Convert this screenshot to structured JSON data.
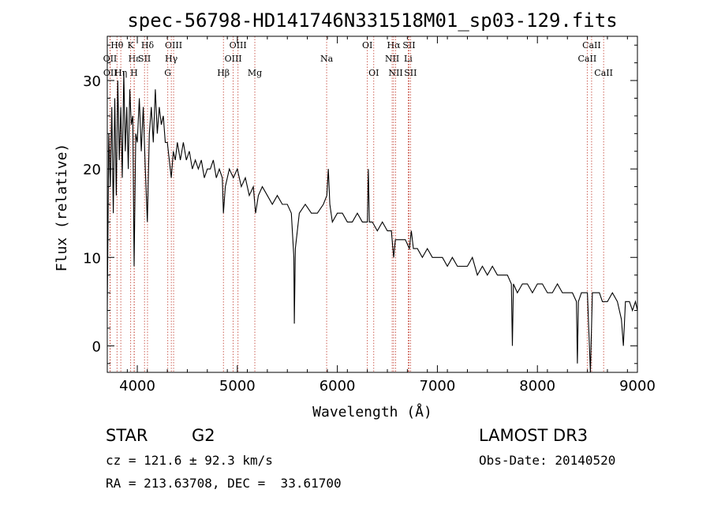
{
  "chart_data": {
    "type": "line",
    "title": "spec-56798-HD141746N331518M01_sp03-129.fits",
    "xlabel": "Wavelength (Å)",
    "ylabel": "Flux (relative)",
    "xlim": [
      3700,
      9000
    ],
    "ylim": [
      -3,
      35
    ],
    "x_ticks": [
      4000,
      5000,
      6000,
      7000,
      8000,
      9000
    ],
    "y_ticks": [
      0,
      10,
      20,
      30
    ],
    "grid": false,
    "series": [
      {
        "name": "spectrum",
        "color": "#000000",
        "points": [
          [
            3700,
            4
          ],
          [
            3715,
            24
          ],
          [
            3730,
            18
          ],
          [
            3745,
            27
          ],
          [
            3760,
            15
          ],
          [
            3775,
            28
          ],
          [
            3790,
            17
          ],
          [
            3805,
            30
          ],
          [
            3820,
            21
          ],
          [
            3835,
            27
          ],
          [
            3850,
            19
          ],
          [
            3865,
            31
          ],
          [
            3880,
            22
          ],
          [
            3895,
            27
          ],
          [
            3910,
            20
          ],
          [
            3925,
            29
          ],
          [
            3940,
            25
          ],
          [
            3955,
            26
          ],
          [
            3968,
            9
          ],
          [
            3985,
            24
          ],
          [
            4000,
            23
          ],
          [
            4020,
            28
          ],
          [
            4040,
            22
          ],
          [
            4060,
            27
          ],
          [
            4080,
            20
          ],
          [
            4101,
            14
          ],
          [
            4120,
            24
          ],
          [
            4140,
            27
          ],
          [
            4160,
            23
          ],
          [
            4180,
            29
          ],
          [
            4200,
            24
          ],
          [
            4220,
            27
          ],
          [
            4240,
            25
          ],
          [
            4260,
            26
          ],
          [
            4280,
            23
          ],
          [
            4300,
            23
          ],
          [
            4320,
            21
          ],
          [
            4340,
            19
          ],
          [
            4360,
            22
          ],
          [
            4380,
            21
          ],
          [
            4400,
            23
          ],
          [
            4430,
            21
          ],
          [
            4460,
            23
          ],
          [
            4490,
            21
          ],
          [
            4520,
            22
          ],
          [
            4550,
            20
          ],
          [
            4580,
            21
          ],
          [
            4610,
            20
          ],
          [
            4640,
            21
          ],
          [
            4670,
            19
          ],
          [
            4700,
            20
          ],
          [
            4730,
            20
          ],
          [
            4760,
            21
          ],
          [
            4790,
            19
          ],
          [
            4820,
            20
          ],
          [
            4850,
            19
          ],
          [
            4861,
            15
          ],
          [
            4880,
            18
          ],
          [
            4920,
            20
          ],
          [
            4960,
            19
          ],
          [
            5000,
            20
          ],
          [
            5040,
            18
          ],
          [
            5080,
            19
          ],
          [
            5120,
            17
          ],
          [
            5160,
            18
          ],
          [
            5183,
            15
          ],
          [
            5210,
            17
          ],
          [
            5250,
            18
          ],
          [
            5300,
            17
          ],
          [
            5350,
            16
          ],
          [
            5400,
            17
          ],
          [
            5450,
            16
          ],
          [
            5500,
            16
          ],
          [
            5540,
            15
          ],
          [
            5565,
            10
          ],
          [
            5570,
            2.5
          ],
          [
            5580,
            11
          ],
          [
            5620,
            15
          ],
          [
            5680,
            16
          ],
          [
            5740,
            15
          ],
          [
            5800,
            15
          ],
          [
            5860,
            16
          ],
          [
            5895,
            17
          ],
          [
            5910,
            20
          ],
          [
            5925,
            16
          ],
          [
            5950,
            14
          ],
          [
            6000,
            15
          ],
          [
            6050,
            15
          ],
          [
            6100,
            14
          ],
          [
            6150,
            14
          ],
          [
            6200,
            15
          ],
          [
            6250,
            14
          ],
          [
            6300,
            14
          ],
          [
            6310,
            20
          ],
          [
            6320,
            14
          ],
          [
            6350,
            14
          ],
          [
            6400,
            13
          ],
          [
            6450,
            14
          ],
          [
            6500,
            13
          ],
          [
            6540,
            13
          ],
          [
            6563,
            10
          ],
          [
            6580,
            12
          ],
          [
            6620,
            12
          ],
          [
            6680,
            12
          ],
          [
            6720,
            11
          ],
          [
            6740,
            13
          ],
          [
            6760,
            11
          ],
          [
            6800,
            11
          ],
          [
            6850,
            10
          ],
          [
            6900,
            11
          ],
          [
            6950,
            10
          ],
          [
            7000,
            10
          ],
          [
            7050,
            10
          ],
          [
            7100,
            9
          ],
          [
            7150,
            10
          ],
          [
            7200,
            9
          ],
          [
            7250,
            9
          ],
          [
            7300,
            9
          ],
          [
            7350,
            10
          ],
          [
            7400,
            8
          ],
          [
            7450,
            9
          ],
          [
            7500,
            8
          ],
          [
            7550,
            9
          ],
          [
            7600,
            8
          ],
          [
            7650,
            8
          ],
          [
            7700,
            8
          ],
          [
            7740,
            7
          ],
          [
            7750,
            0
          ],
          [
            7760,
            7
          ],
          [
            7800,
            6
          ],
          [
            7850,
            7
          ],
          [
            7900,
            7
          ],
          [
            7950,
            6
          ],
          [
            8000,
            7
          ],
          [
            8050,
            7
          ],
          [
            8100,
            6
          ],
          [
            8150,
            6
          ],
          [
            8200,
            7
          ],
          [
            8250,
            6
          ],
          [
            8300,
            6
          ],
          [
            8350,
            6
          ],
          [
            8390,
            5
          ],
          [
            8400,
            -2
          ],
          [
            8410,
            5
          ],
          [
            8440,
            6
          ],
          [
            8480,
            6
          ],
          [
            8500,
            6
          ],
          [
            8530,
            -3
          ],
          [
            8550,
            6
          ],
          [
            8580,
            6
          ],
          [
            8620,
            6
          ],
          [
            8650,
            5
          ],
          [
            8700,
            5
          ],
          [
            8750,
            6
          ],
          [
            8800,
            5
          ],
          [
            8840,
            3
          ],
          [
            8860,
            0
          ],
          [
            8880,
            5
          ],
          [
            8920,
            5
          ],
          [
            8950,
            4
          ],
          [
            8980,
            5
          ],
          [
            9000,
            4
          ]
        ]
      }
    ],
    "line_markers": [
      {
        "label": "Hθ",
        "wavelength": 3797,
        "row": 1
      },
      {
        "label": "OII",
        "wavelength": 3727,
        "row": 2
      },
      {
        "label": "OII",
        "wavelength": 3729,
        "row": 3
      },
      {
        "label": "Hε",
        "wavelength": 3970,
        "row": 2
      },
      {
        "label": "Hη",
        "wavelength": 3835,
        "row": 3
      },
      {
        "label": "K",
        "wavelength": 3934,
        "row": 1
      },
      {
        "label": "H",
        "wavelength": 3968,
        "row": 3
      },
      {
        "label": "Hδ",
        "wavelength": 4102,
        "row": 1
      },
      {
        "label": "SII",
        "wavelength": 4072,
        "row": 2
      },
      {
        "label": "OIII",
        "wavelength": 4363,
        "row": 1
      },
      {
        "label": "Hγ",
        "wavelength": 4340,
        "row": 2
      },
      {
        "label": "G",
        "wavelength": 4305,
        "row": 3
      },
      {
        "label": "Hβ",
        "wavelength": 4861,
        "row": 3
      },
      {
        "label": "OIII",
        "wavelength": 5007,
        "row": 1
      },
      {
        "label": "OIII",
        "wavelength": 4959,
        "row": 2
      },
      {
        "label": "Mg",
        "wavelength": 5175,
        "row": 3
      },
      {
        "label": "Na",
        "wavelength": 5893,
        "row": 2
      },
      {
        "label": "OI",
        "wavelength": 6300,
        "row": 1
      },
      {
        "label": "OI",
        "wavelength": 6364,
        "row": 3
      },
      {
        "label": "Hα",
        "wavelength": 6563,
        "row": 1
      },
      {
        "label": "NII",
        "wavelength": 6548,
        "row": 2
      },
      {
        "label": "NII",
        "wavelength": 6583,
        "row": 3
      },
      {
        "label": "SII",
        "wavelength": 6717,
        "row": 1
      },
      {
        "label": "Li",
        "wavelength": 6708,
        "row": 2
      },
      {
        "label": "SII",
        "wavelength": 6731,
        "row": 3
      },
      {
        "label": "CaII",
        "wavelength": 8542,
        "row": 1
      },
      {
        "label": "CaII",
        "wavelength": 8498,
        "row": 2
      },
      {
        "label": "CaII",
        "wavelength": 8662,
        "row": 3
      }
    ],
    "marker_color": "#c0392b"
  },
  "info": {
    "object_class": "STAR",
    "subclass": "G2",
    "redshift_line": "cz = 121.6 ± 92.3 km/s",
    "coords_line": "RA = 213.63708, DEC =  33.61700",
    "survey": "LAMOST DR3",
    "obs_date_line": "Obs-Date: 20140520"
  }
}
